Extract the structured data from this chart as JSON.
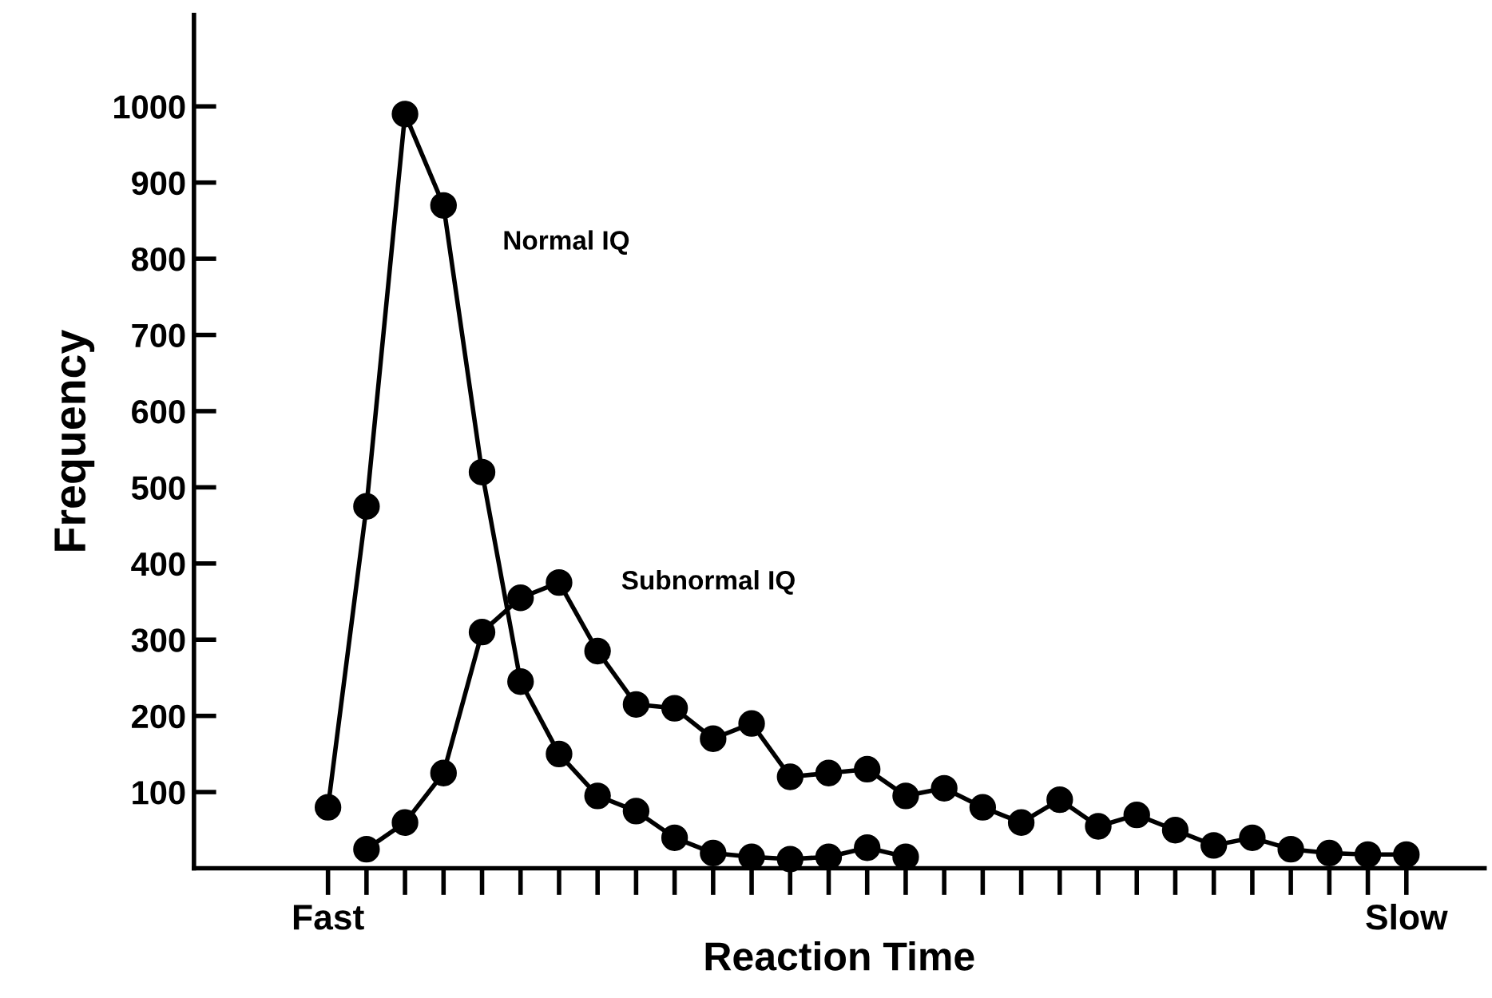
{
  "chart_data": {
    "type": "line",
    "xlabel": "Reaction Time",
    "ylabel": "Frequency",
    "categories": [
      "Fast",
      null,
      null,
      null,
      null,
      null,
      null,
      null,
      null,
      null,
      null,
      null,
      null,
      null,
      null,
      null,
      null,
      null,
      null,
      null,
      null,
      null,
      null,
      null,
      null,
      null,
      null,
      null,
      "Slow"
    ],
    "ylim": [
      0,
      1120
    ],
    "yticks": [
      100,
      200,
      300,
      400,
      500,
      600,
      700,
      800,
      900,
      1000
    ],
    "grid": false,
    "legend": false,
    "marker": "circle",
    "line_style": "solid",
    "series": [
      {
        "name": "Normal IQ",
        "color": "#000000",
        "values": [
          80,
          475,
          990,
          870,
          520,
          245,
          150,
          95,
          75,
          40,
          20,
          15,
          12,
          15,
          27,
          15,
          null,
          null,
          null,
          null,
          null,
          null,
          null,
          null,
          null,
          null,
          null,
          null,
          null
        ]
      },
      {
        "name": "Subnormal IQ",
        "color": "#000000",
        "values": [
          null,
          25,
          60,
          125,
          310,
          355,
          375,
          285,
          215,
          210,
          170,
          190,
          120,
          125,
          130,
          95,
          105,
          80,
          60,
          90,
          55,
          70,
          50,
          30,
          40,
          25,
          20,
          18,
          18
        ]
      }
    ]
  }
}
